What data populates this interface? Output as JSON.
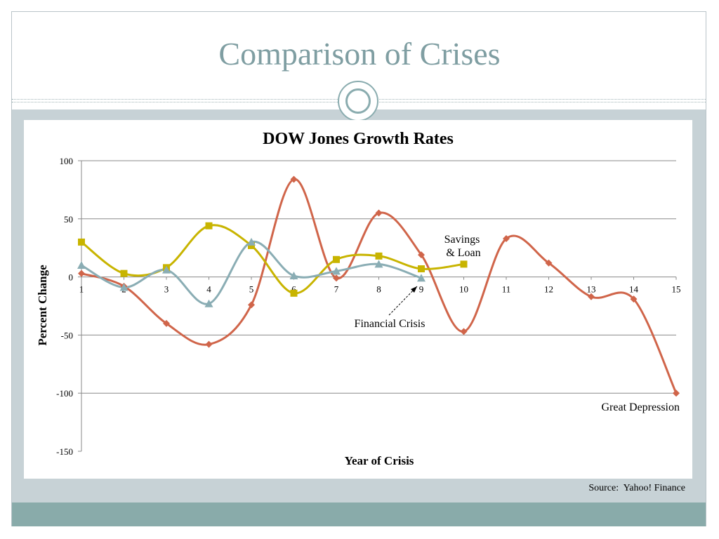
{
  "slide": {
    "title": "Comparison of Crises",
    "source": "Source:  Yahoo! Finance"
  },
  "colors": {
    "title": "#7f9ea2",
    "band": "#c7d2d6",
    "bottom_bar": "#89abaa",
    "great_depression": "#d0654a",
    "savings_loan": "#c8b400",
    "financial_crisis": "#8aadb4"
  },
  "chart_data": {
    "type": "line",
    "title": "DOW Jones Growth Rates",
    "xlabel": "Year of Crisis",
    "ylabel": "Percent Change",
    "xlim": [
      1,
      15
    ],
    "ylim": [
      -150,
      100
    ],
    "x_ticks": [
      1,
      2,
      3,
      4,
      5,
      6,
      7,
      8,
      9,
      10,
      11,
      12,
      13,
      14,
      15
    ],
    "y_ticks": [
      100,
      50,
      0,
      -50,
      -100,
      -150
    ],
    "grid": "horizontal",
    "smooth": true,
    "series": [
      {
        "name": "Great Depression",
        "marker": "diamond",
        "color": "#d0654a",
        "x": [
          1,
          2,
          3,
          4,
          5,
          6,
          7,
          8,
          9,
          10,
          11,
          12,
          13,
          14,
          15
        ],
        "values": [
          3,
          -8,
          -40,
          -58,
          -24,
          84,
          -1,
          55,
          19,
          -47,
          33,
          12,
          -17,
          -19,
          -100
        ]
      },
      {
        "name": "Savings & Loan",
        "marker": "square",
        "color": "#c8b400",
        "x": [
          1,
          2,
          3,
          4,
          5,
          6,
          7,
          8,
          9,
          10
        ],
        "values": [
          30,
          3,
          8,
          44,
          27,
          -14,
          15,
          18,
          7,
          11
        ]
      },
      {
        "name": "Financial Crisis",
        "marker": "triangle",
        "color": "#8aadb4",
        "x": [
          1,
          2,
          3,
          4,
          5,
          6,
          7,
          8,
          9
        ],
        "values": [
          10,
          -9,
          6,
          -23,
          30,
          1,
          5,
          11,
          -1
        ]
      }
    ],
    "annotations": [
      {
        "text_lines": [
          "Savings",
          "& Loan"
        ]
      },
      {
        "text": "Financial Crisis",
        "arrow": true
      },
      {
        "text": "Great Depression"
      }
    ]
  }
}
